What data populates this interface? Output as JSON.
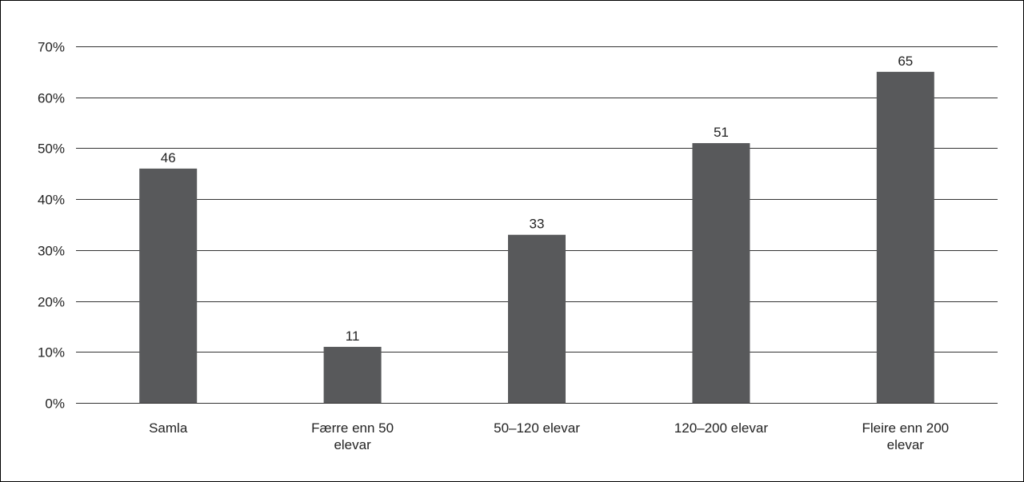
{
  "chart_data": {
    "type": "bar",
    "categories": [
      [
        "Samla"
      ],
      [
        "Færre enn 50",
        "elevar"
      ],
      [
        "50–120 elevar"
      ],
      [
        "120–200 elevar"
      ],
      [
        "Fleire enn 200",
        "elevar"
      ]
    ],
    "values": [
      46,
      11,
      33,
      51,
      65
    ],
    "data_labels": [
      "46",
      "11",
      "33",
      "51",
      "65"
    ],
    "ylim": [
      0,
      70
    ],
    "yticks": [
      0,
      10,
      20,
      30,
      40,
      50,
      60,
      70
    ],
    "ytick_labels": [
      "0%",
      "10%",
      "20%",
      "30%",
      "40%",
      "50%",
      "60%",
      "70%"
    ],
    "grid": true,
    "colors": {
      "bar": "#58595b",
      "grid": "#333333",
      "axis": "#333333"
    }
  }
}
